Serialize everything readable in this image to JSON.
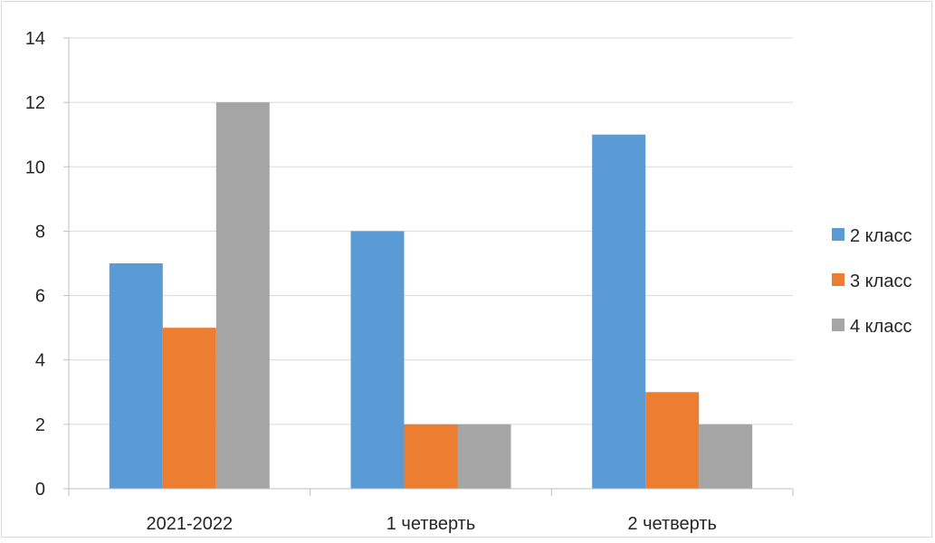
{
  "chart_data": {
    "type": "bar",
    "title": "",
    "xlabel": "",
    "ylabel": "",
    "categories": [
      "2021-2022",
      "1 четверть",
      "2 четверть"
    ],
    "series": [
      {
        "name": "2 класс",
        "values": [
          7,
          8,
          11
        ],
        "color": "#5b9bd5"
      },
      {
        "name": "3 класс",
        "values": [
          5,
          2,
          3
        ],
        "color": "#ed7d31"
      },
      {
        "name": "4 класс",
        "values": [
          12,
          2,
          2
        ],
        "color": "#a5a5a5"
      }
    ],
    "ylim": [
      0,
      14
    ],
    "yticks": [
      0,
      2,
      4,
      6,
      8,
      10,
      12,
      14
    ],
    "grid": true,
    "legend_position": "right"
  }
}
